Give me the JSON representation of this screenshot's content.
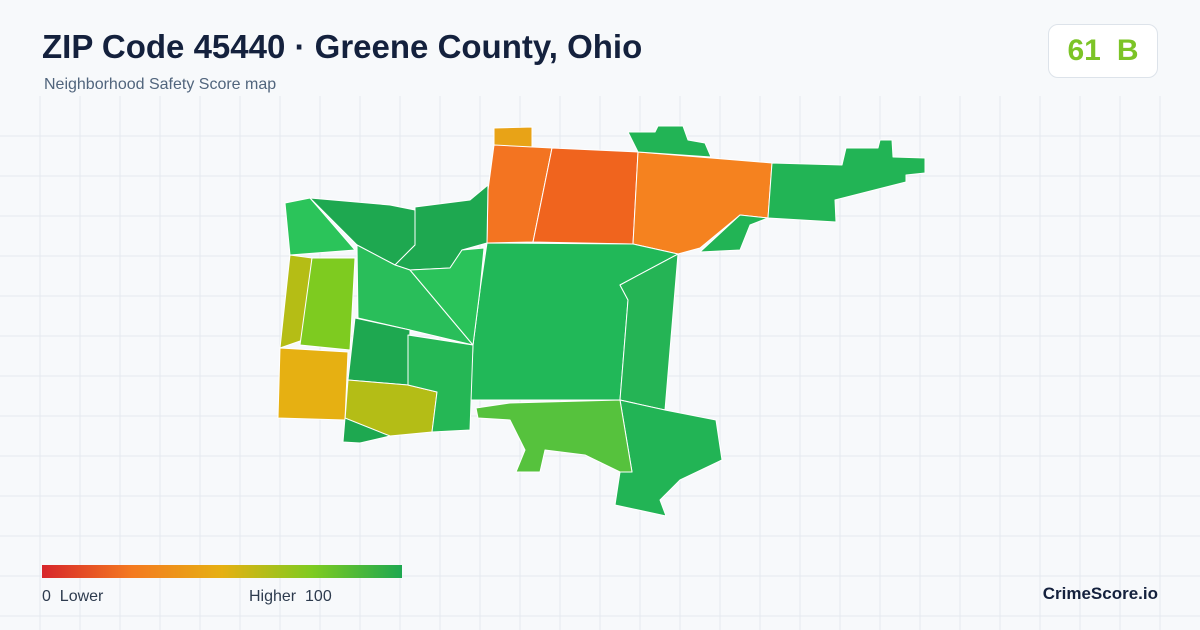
{
  "header": {
    "title": "ZIP Code 45440 · Greene County, Ohio",
    "subtitle": "Neighborhood Safety Score map"
  },
  "score": {
    "value": 61,
    "grade": "B"
  },
  "legend": {
    "min": 0,
    "min_label": "Lower",
    "max_label": "Higher",
    "max": 100
  },
  "footer": {
    "brand": "CrimeScore.io"
  }
}
